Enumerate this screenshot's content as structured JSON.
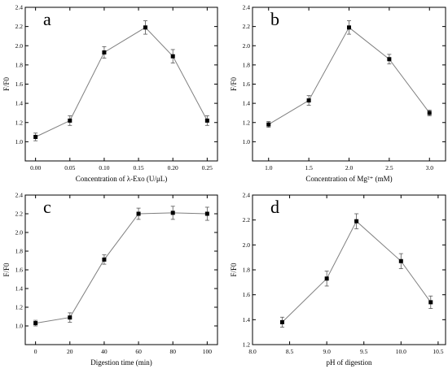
{
  "chart_data": [
    {
      "type": "line",
      "panel": "a",
      "xlabel": "Concentration of λ-Exo (U/μL)",
      "ylabel": "F/F0",
      "xlim": [
        -0.015,
        0.265
      ],
      "ylim": [
        0.8,
        2.4
      ],
      "xticks": [
        "0.00",
        "0.05",
        "0.10",
        "0.15",
        "0.20",
        "0.25"
      ],
      "yticks": [
        "1.0",
        "1.2",
        "1.4",
        "1.6",
        "1.8",
        "2.0",
        "2.2",
        "2.4"
      ],
      "x": [
        0.0,
        0.05,
        0.1,
        0.16,
        0.2,
        0.25
      ],
      "y": [
        1.05,
        1.22,
        1.93,
        2.19,
        1.89,
        1.22
      ],
      "err": [
        0.04,
        0.05,
        0.06,
        0.07,
        0.07,
        0.05
      ]
    },
    {
      "type": "line",
      "panel": "b",
      "xlabel": "Concentration of Mg²⁺ (mM)",
      "ylabel": "F/F0",
      "xlim": [
        0.8,
        3.2
      ],
      "ylim": [
        0.8,
        2.4
      ],
      "xticks": [
        "1.0",
        "1.5",
        "2.0",
        "2.5",
        "3.0"
      ],
      "yticks": [
        "1.0",
        "1.2",
        "1.4",
        "1.6",
        "1.8",
        "2.0",
        "2.2",
        "2.4"
      ],
      "x": [
        1.0,
        1.5,
        2.0,
        2.5,
        3.0
      ],
      "y": [
        1.18,
        1.43,
        2.19,
        1.86,
        1.3
      ],
      "err": [
        0.03,
        0.05,
        0.07,
        0.05,
        0.03
      ]
    },
    {
      "type": "line",
      "panel": "c",
      "xlabel": "Digestion time (min)",
      "ylabel": "F/F0",
      "xlim": [
        -6,
        106
      ],
      "ylim": [
        0.8,
        2.4
      ],
      "xticks": [
        "0",
        "20",
        "40",
        "60",
        "80",
        "100"
      ],
      "yticks": [
        "1.0",
        "1.2",
        "1.4",
        "1.6",
        "1.8",
        "2.0",
        "2.2",
        "2.4"
      ],
      "x": [
        0,
        20,
        40,
        60,
        80,
        100
      ],
      "y": [
        1.03,
        1.09,
        1.71,
        2.2,
        2.21,
        2.2
      ],
      "err": [
        0.03,
        0.05,
        0.05,
        0.06,
        0.07,
        0.07
      ]
    },
    {
      "type": "line",
      "panel": "d",
      "xlabel": "pH of digestion",
      "ylabel": "F/F0",
      "xlim": [
        8.0,
        10.6
      ],
      "ylim": [
        1.2,
        2.4
      ],
      "xticks": [
        "8.0",
        "8.5",
        "9.0",
        "9.5",
        "10.0",
        "10.5"
      ],
      "yticks": [
        "1.2",
        "1.4",
        "1.6",
        "1.8",
        "2.0",
        "2.2",
        "2.4"
      ],
      "x": [
        8.4,
        9.0,
        9.4,
        10.0,
        10.4
      ],
      "y": [
        1.38,
        1.73,
        2.19,
        1.87,
        1.54
      ],
      "err": [
        0.04,
        0.06,
        0.06,
        0.06,
        0.05
      ]
    }
  ]
}
